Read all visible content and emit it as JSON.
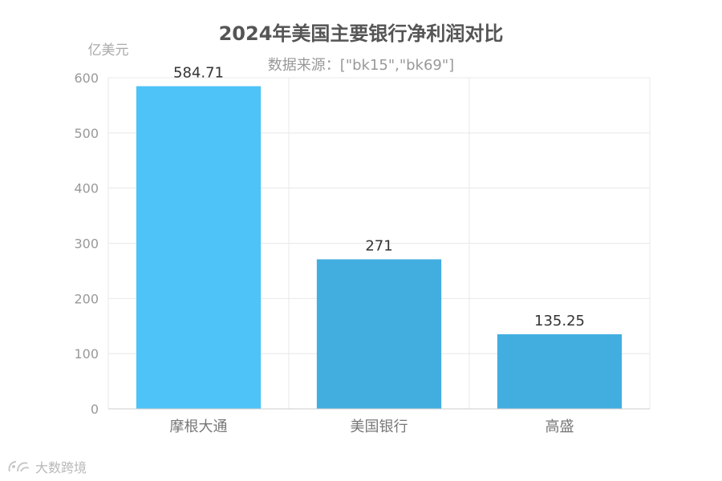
{
  "chart_data": {
    "type": "bar",
    "title": "2024年美国主要银行净利润对比",
    "subtitle": "数据来源：[\"bk15\",\"bk69\"]",
    "ylabel": "亿美元",
    "xlabel": "",
    "categories": [
      "摩根大通",
      "美国银行",
      "高盛"
    ],
    "values": [
      584.71,
      271,
      135.25
    ],
    "data_labels": [
      "584.71",
      "271",
      "135.25"
    ],
    "ylim": [
      0,
      600
    ],
    "yticks": [
      0,
      100,
      200,
      300,
      400,
      500,
      600
    ],
    "grid": true,
    "bar_colors": [
      "#4dc3f7",
      "#42aee0",
      "#42aee0"
    ]
  },
  "watermark": {
    "text": "大数跨境",
    "icon": "brand-logo-icon"
  }
}
